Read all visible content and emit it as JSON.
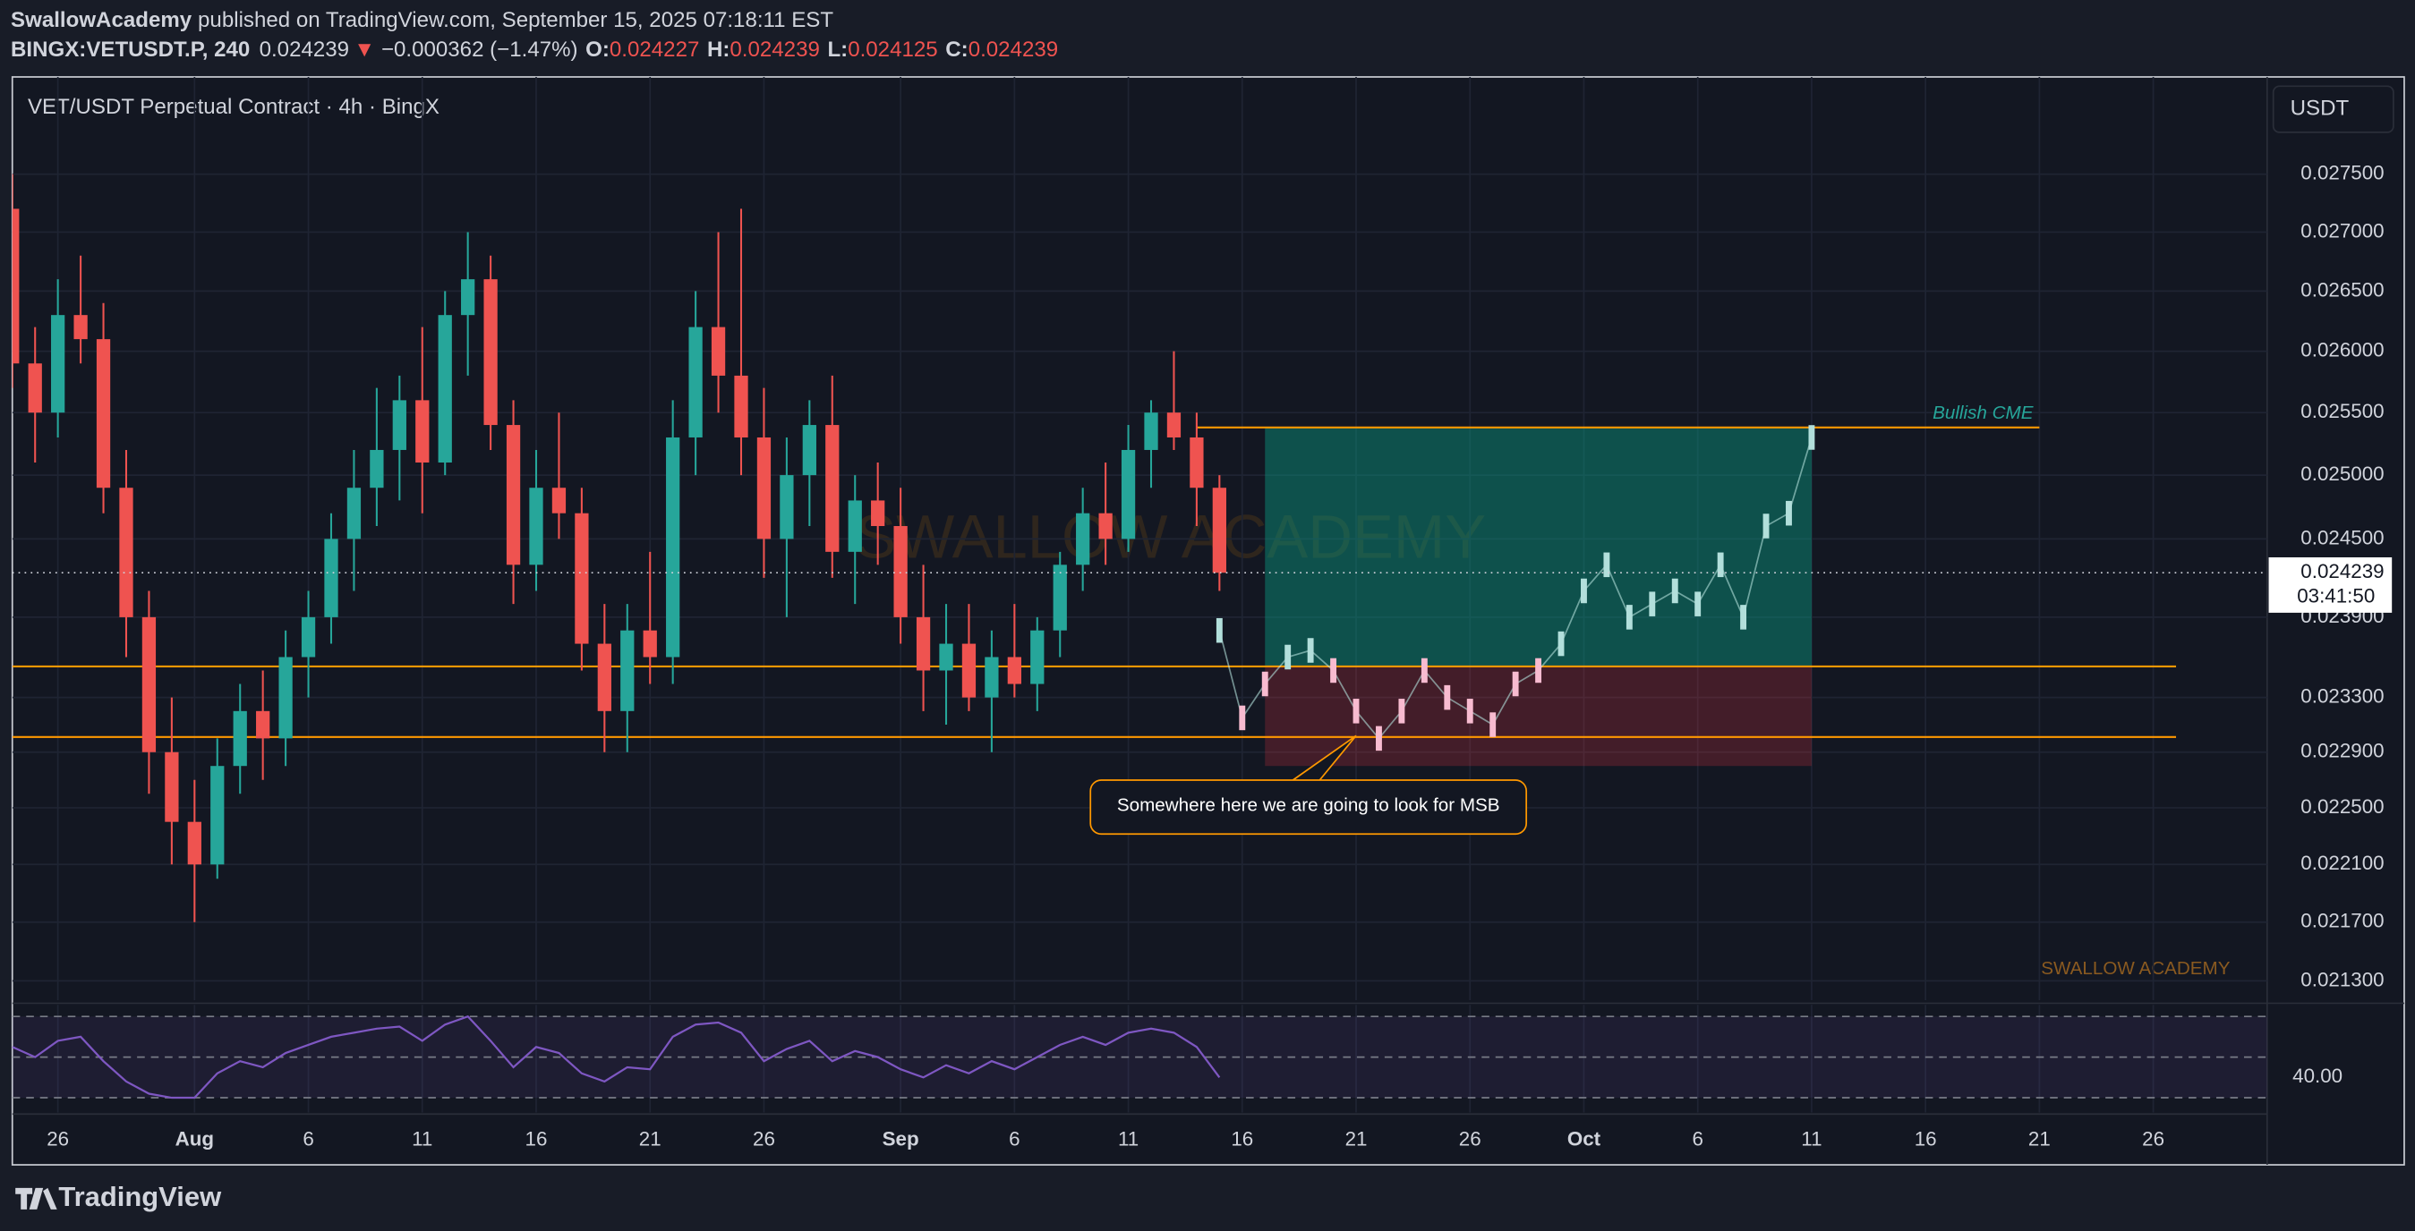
{
  "header": {
    "author": "SwallowAcademy",
    "published": "published on TradingView.com, September 15, 2025 07:18:11 EST",
    "symbol": "BINGX:VETUSDT.P, 240",
    "last": "0.024239",
    "arrow": "▼",
    "change": "−0.000362 (−1.47%)",
    "ohlc": [
      {
        "key": "O:",
        "value": "0.024227"
      },
      {
        "key": "H:",
        "value": "0.024239"
      },
      {
        "key": "L:",
        "value": "0.024125"
      },
      {
        "key": "C:",
        "value": "0.024239"
      }
    ]
  },
  "chart_data": {
    "type": "candlestick",
    "title": "VET/USDT Perpetual Contract · 4h · BingX",
    "currency": "USDT",
    "watermark": "SWALLOW ACADEMY",
    "signature": "SWALLOW ACADEMY",
    "countdown": "03:41:50",
    "log_scale": true,
    "grid": true,
    "up_color": "#26a69a",
    "down_color": "#ef5350",
    "level_color": "#ff9800",
    "xlim": [
      "2025-07-24",
      "2025-10-31"
    ],
    "ylim": [
      0.02117,
      0.02836
    ],
    "yticks": [
      {
        "value": 0.0275,
        "label": "0.027500"
      },
      {
        "value": 0.027,
        "label": "0.027000"
      },
      {
        "value": 0.0265,
        "label": "0.026500"
      },
      {
        "value": 0.026,
        "label": "0.026000"
      },
      {
        "value": 0.0255,
        "label": "0.025500"
      },
      {
        "value": 0.025,
        "label": "0.025000"
      },
      {
        "value": 0.0245,
        "label": "0.024500"
      },
      {
        "value": 0.0239,
        "label": "0.023900"
      },
      {
        "value": 0.0233,
        "label": "0.023300"
      },
      {
        "value": 0.0229,
        "label": "0.022900"
      },
      {
        "value": 0.0225,
        "label": "0.022500"
      },
      {
        "value": 0.0221,
        "label": "0.022100"
      },
      {
        "value": 0.0217,
        "label": "0.021700"
      },
      {
        "value": 0.0213,
        "label": "0.021300"
      }
    ],
    "xticks": [
      {
        "value": "2025-07-26",
        "label": "26"
      },
      {
        "value": "2025-08-01",
        "label": "Aug"
      },
      {
        "value": "2025-08-06",
        "label": "6"
      },
      {
        "value": "2025-08-11",
        "label": "11"
      },
      {
        "value": "2025-08-16",
        "label": "16"
      },
      {
        "value": "2025-08-21",
        "label": "21"
      },
      {
        "value": "2025-08-26",
        "label": "26"
      },
      {
        "value": "2025-09-01",
        "label": "Sep"
      },
      {
        "value": "2025-09-06",
        "label": "6"
      },
      {
        "value": "2025-09-11",
        "label": "11"
      },
      {
        "value": "2025-09-16",
        "label": "16"
      },
      {
        "value": "2025-09-21",
        "label": "21"
      },
      {
        "value": "2025-09-26",
        "label": "26"
      },
      {
        "value": "2025-10-01",
        "label": "Oct"
      },
      {
        "value": "2025-10-06",
        "label": "6"
      },
      {
        "value": "2025-10-11",
        "label": "11"
      },
      {
        "value": "2025-10-16",
        "label": "16"
      },
      {
        "value": "2025-10-21",
        "label": "21"
      },
      {
        "value": "2025-10-26",
        "label": "26"
      }
    ],
    "x": [
      "2025-07-24",
      "2025-07-25",
      "2025-07-26",
      "2025-07-27",
      "2025-07-28",
      "2025-07-29",
      "2025-07-30",
      "2025-07-31",
      "2025-08-01",
      "2025-08-02",
      "2025-08-03",
      "2025-08-04",
      "2025-08-05",
      "2025-08-06",
      "2025-08-07",
      "2025-08-08",
      "2025-08-09",
      "2025-08-10",
      "2025-08-11",
      "2025-08-12",
      "2025-08-13",
      "2025-08-14",
      "2025-08-15",
      "2025-08-16",
      "2025-08-17",
      "2025-08-18",
      "2025-08-19",
      "2025-08-20",
      "2025-08-21",
      "2025-08-22",
      "2025-08-23",
      "2025-08-24",
      "2025-08-25",
      "2025-08-26",
      "2025-08-27",
      "2025-08-28",
      "2025-08-29",
      "2025-08-30",
      "2025-08-31",
      "2025-09-01",
      "2025-09-02",
      "2025-09-03",
      "2025-09-04",
      "2025-09-05",
      "2025-09-06",
      "2025-09-07",
      "2025-09-08",
      "2025-09-09",
      "2025-09-10",
      "2025-09-11",
      "2025-09-12",
      "2025-09-13",
      "2025-09-14",
      "2025-09-15"
    ],
    "open": [
      0.0272,
      0.0259,
      0.0255,
      0.0263,
      0.0261,
      0.0249,
      0.0239,
      0.0229,
      0.0224,
      0.0221,
      0.0228,
      0.0232,
      0.023,
      0.0236,
      0.0239,
      0.0245,
      0.0249,
      0.0252,
      0.0256,
      0.0251,
      0.0263,
      0.0266,
      0.0254,
      0.0243,
      0.0249,
      0.0247,
      0.0237,
      0.0232,
      0.0238,
      0.0236,
      0.0253,
      0.0262,
      0.0258,
      0.0253,
      0.0245,
      0.025,
      0.0254,
      0.0244,
      0.0248,
      0.0246,
      0.0239,
      0.0235,
      0.0237,
      0.0233,
      0.0236,
      0.0234,
      0.0238,
      0.0243,
      0.0247,
      0.0245,
      0.0252,
      0.0255,
      0.0253,
      0.0249
    ],
    "high": [
      0.0275,
      0.0262,
      0.0266,
      0.0268,
      0.0264,
      0.0252,
      0.0241,
      0.0233,
      0.0227,
      0.023,
      0.0234,
      0.0235,
      0.0238,
      0.0241,
      0.0247,
      0.0252,
      0.0257,
      0.0258,
      0.0262,
      0.0265,
      0.027,
      0.0268,
      0.0256,
      0.0252,
      0.0255,
      0.0249,
      0.024,
      0.024,
      0.0244,
      0.0256,
      0.0265,
      0.027,
      0.0272,
      0.0257,
      0.0253,
      0.0256,
      0.0258,
      0.025,
      0.0251,
      0.0249,
      0.0243,
      0.024,
      0.024,
      0.0238,
      0.024,
      0.0239,
      0.0244,
      0.0249,
      0.0251,
      0.0254,
      0.0256,
      0.026,
      0.0255,
      0.025
    ],
    "low": [
      0.0257,
      0.0251,
      0.0253,
      0.0259,
      0.0247,
      0.0236,
      0.0226,
      0.0221,
      0.0217,
      0.022,
      0.0226,
      0.0227,
      0.0228,
      0.0233,
      0.0237,
      0.0241,
      0.0246,
      0.0248,
      0.0247,
      0.025,
      0.0258,
      0.0252,
      0.024,
      0.0241,
      0.0245,
      0.0235,
      0.0229,
      0.0229,
      0.0234,
      0.0234,
      0.025,
      0.0255,
      0.025,
      0.0242,
      0.0239,
      0.0246,
      0.0242,
      0.024,
      0.0243,
      0.0237,
      0.0232,
      0.0231,
      0.0232,
      0.0229,
      0.0233,
      0.0232,
      0.0236,
      0.0241,
      0.0243,
      0.0244,
      0.0249,
      0.0252,
      0.0246,
      0.0241
    ],
    "close": [
      0.0259,
      0.0255,
      0.0263,
      0.0261,
      0.0249,
      0.0239,
      0.0229,
      0.0224,
      0.0221,
      0.0228,
      0.0232,
      0.023,
      0.0236,
      0.0239,
      0.0245,
      0.0249,
      0.0252,
      0.0256,
      0.0251,
      0.0263,
      0.0266,
      0.0254,
      0.0243,
      0.0249,
      0.0247,
      0.0237,
      0.0232,
      0.0238,
      0.0236,
      0.0253,
      0.0262,
      0.0258,
      0.0253,
      0.0245,
      0.025,
      0.0254,
      0.0244,
      0.0248,
      0.0246,
      0.0239,
      0.0235,
      0.0237,
      0.0233,
      0.0236,
      0.0234,
      0.0238,
      0.0243,
      0.0247,
      0.0245,
      0.0252,
      0.0255,
      0.0253,
      0.0249,
      0.024239
    ],
    "levels": [
      {
        "value": 0.02353,
        "from": "2025-07-24",
        "to": "2025-10-27"
      },
      {
        "value": 0.02301,
        "from": "2025-07-24",
        "to": "2025-10-27"
      }
    ],
    "cme": {
      "label": "Bullish CME",
      "value": 0.02538,
      "from": "2025-09-14",
      "to": "2025-10-21"
    },
    "zone": {
      "from": "2025-09-17",
      "to": "2025-10-11",
      "top": 0.02538,
      "entry": 0.02353,
      "bottom": 0.0228
    },
    "projection": {
      "x": [
        "2025-09-15",
        "2025-09-16",
        "2025-09-17",
        "2025-09-18",
        "2025-09-19",
        "2025-09-20",
        "2025-09-21",
        "2025-09-22",
        "2025-09-23",
        "2025-09-24",
        "2025-09-25",
        "2025-09-26",
        "2025-09-27",
        "2025-09-28",
        "2025-09-29",
        "2025-09-30",
        "2025-10-01",
        "2025-10-02",
        "2025-10-03",
        "2025-10-04",
        "2025-10-05",
        "2025-10-06",
        "2025-10-07",
        "2025-10-08",
        "2025-10-09",
        "2025-10-10",
        "2025-10-11"
      ],
      "values": [
        0.0238,
        0.02315,
        0.0234,
        0.0236,
        0.02365,
        0.0235,
        0.0232,
        0.023,
        0.0232,
        0.0235,
        0.0233,
        0.0232,
        0.0231,
        0.0234,
        0.0235,
        0.0237,
        0.0241,
        0.0243,
        0.0239,
        0.024,
        0.0241,
        0.024,
        0.0243,
        0.0239,
        0.0246,
        0.0247,
        0.0253
      ]
    },
    "annotation": {
      "text": "Somewhere here we are going to look for MSB",
      "x": "2025-09-21",
      "value": 0.02302
    },
    "rsi": {
      "color": "#7e57c2",
      "ylim": [
        25,
        78
      ],
      "levels": [
        70,
        50,
        30
      ],
      "yticks": [
        {
          "value": 40,
          "label": "40.00"
        }
      ],
      "values": [
        55,
        50,
        58,
        60,
        48,
        38,
        32,
        30,
        30,
        42,
        48,
        45,
        52,
        56,
        60,
        62,
        64,
        65,
        58,
        66,
        70,
        58,
        45,
        55,
        52,
        42,
        38,
        45,
        44,
        60,
        66,
        67,
        62,
        48,
        54,
        58,
        48,
        53,
        50,
        44,
        40,
        46,
        42,
        48,
        44,
        50,
        56,
        60,
        56,
        62,
        64,
        62,
        55,
        40
      ]
    }
  },
  "footer": {
    "brand": "TradingView"
  }
}
